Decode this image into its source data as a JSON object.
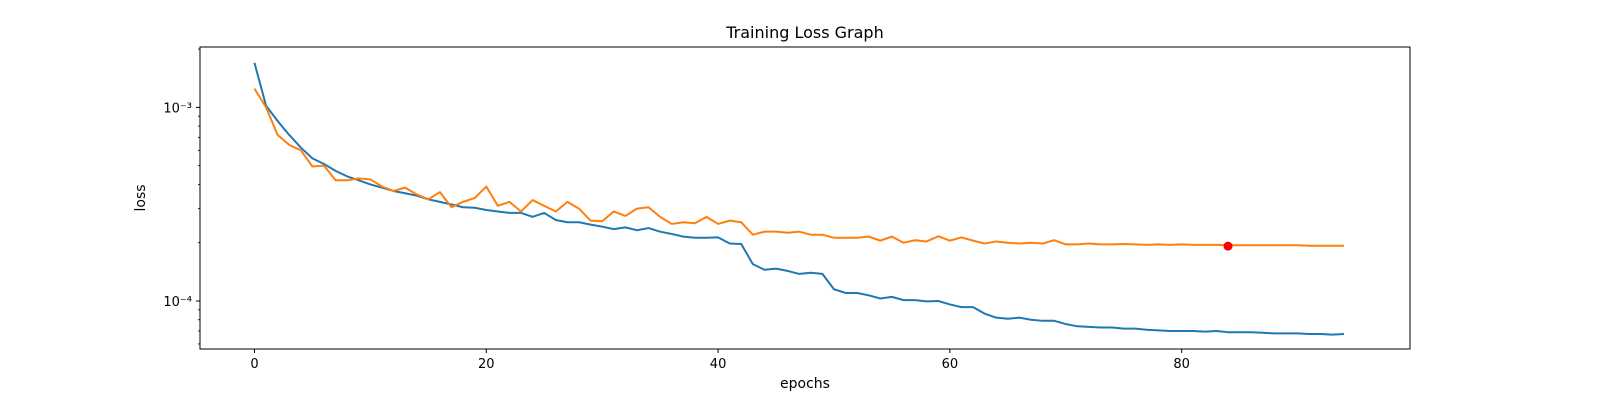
{
  "chart_data": {
    "type": "line",
    "title": "Training Loss Graph",
    "xlabel": "epochs",
    "ylabel": "loss",
    "yscale": "log",
    "xlim": [
      -4.7,
      99.7
    ],
    "ylim": [
      5.65e-05,
      0.00205
    ],
    "xticks": [
      0,
      20,
      40,
      60,
      80
    ],
    "xtick_labels": [
      "0",
      "20",
      "40",
      "60",
      "80"
    ],
    "yticks": [
      0.0001,
      0.001
    ],
    "ytick_labels": [
      "10⁻⁴",
      "10⁻³"
    ],
    "grid": false,
    "legend": "none",
    "series": [
      {
        "color": "#1f77b4",
        "x": [
          0,
          1,
          2,
          3,
          4,
          5,
          6,
          7,
          8,
          9,
          10,
          11,
          12,
          13,
          14,
          15,
          16,
          17,
          18,
          19,
          20,
          21,
          22,
          23,
          24,
          25,
          26,
          27,
          28,
          29,
          30,
          31,
          32,
          33,
          34,
          35,
          36,
          37,
          38,
          39,
          40,
          41,
          42,
          43,
          44,
          45,
          46,
          47,
          48,
          49,
          50,
          51,
          52,
          53,
          54,
          55,
          56,
          57,
          58,
          59,
          60,
          61,
          62,
          63,
          64,
          65,
          66,
          67,
          68,
          69,
          70,
          71,
          72,
          73,
          74,
          75,
          76,
          77,
          78,
          79,
          80,
          81,
          82,
          83,
          84,
          85,
          86,
          87,
          88,
          89,
          90,
          91,
          92,
          93,
          94
        ],
        "values": [
          0.0017,
          0.00102,
          0.00085,
          0.00072,
          0.00062,
          0.000545,
          0.00051,
          0.00047,
          0.00044,
          0.00042,
          0.0004,
          0.000385,
          0.00037,
          0.00036,
          0.00035,
          0.000335,
          0.000325,
          0.000315,
          0.000305,
          0.000303,
          0.000295,
          0.00029,
          0.000285,
          0.000285,
          0.000272,
          0.000285,
          0.000262,
          0.000255,
          0.000255,
          0.000248,
          0.000242,
          0.000235,
          0.00024,
          0.000232,
          0.000238,
          0.000228,
          0.000222,
          0.000215,
          0.000212,
          0.000212,
          0.000213,
          0.000198,
          0.000197,
          0.000155,
          0.000145,
          0.000147,
          0.000143,
          0.000138,
          0.00014,
          0.000138,
          0.000115,
          0.00011,
          0.00011,
          0.000107,
          0.000103,
          0.000105,
          0.000101,
          0.000101,
          9.95e-05,
          0.0001,
          9.6e-05,
          9.3e-05,
          9.3e-05,
          8.6e-05,
          8.2e-05,
          8.1e-05,
          8.2e-05,
          8e-05,
          7.9e-05,
          7.9e-05,
          7.6e-05,
          7.4e-05,
          7.35e-05,
          7.3e-05,
          7.3e-05,
          7.2e-05,
          7.2e-05,
          7.1e-05,
          7.05e-05,
          7e-05,
          7e-05,
          7e-05,
          6.95e-05,
          7e-05,
          6.9e-05,
          6.9e-05,
          6.9e-05,
          6.85e-05,
          6.8e-05,
          6.8e-05,
          6.8e-05,
          6.75e-05,
          6.75e-05,
          6.7e-05,
          6.75e-05
        ]
      },
      {
        "color": "#ff7f0e",
        "x": [
          0,
          1,
          2,
          3,
          4,
          5,
          6,
          7,
          8,
          9,
          10,
          11,
          12,
          13,
          14,
          15,
          16,
          17,
          18,
          19,
          20,
          21,
          22,
          23,
          24,
          25,
          26,
          27,
          28,
          29,
          30,
          31,
          32,
          33,
          34,
          35,
          36,
          37,
          38,
          39,
          40,
          41,
          42,
          43,
          44,
          45,
          46,
          47,
          48,
          49,
          50,
          51,
          52,
          53,
          54,
          55,
          56,
          57,
          58,
          59,
          60,
          61,
          62,
          63,
          64,
          65,
          66,
          67,
          68,
          69,
          70,
          71,
          72,
          73,
          74,
          75,
          76,
          77,
          78,
          79,
          80,
          81,
          82,
          83,
          84,
          85,
          86,
          87,
          88,
          89,
          90,
          91,
          92,
          93,
          94
        ],
        "values": [
          0.00125,
          0.001,
          0.00072,
          0.00064,
          0.0006,
          0.000495,
          0.0005,
          0.00042,
          0.00042,
          0.00043,
          0.000425,
          0.00039,
          0.00037,
          0.000385,
          0.000355,
          0.000335,
          0.000365,
          0.000305,
          0.000325,
          0.00034,
          0.00039,
          0.00031,
          0.000325,
          0.00029,
          0.000332,
          0.00031,
          0.00029,
          0.000325,
          0.0003,
          0.00026,
          0.000258,
          0.00029,
          0.000275,
          0.0003,
          0.000305,
          0.000272,
          0.00025,
          0.000255,
          0.000252,
          0.000272,
          0.00025,
          0.00026,
          0.000255,
          0.00022,
          0.000228,
          0.000228,
          0.000225,
          0.000228,
          0.00022,
          0.00022,
          0.000212,
          0.000212,
          0.000212,
          0.000215,
          0.000205,
          0.000215,
          0.0002,
          0.000206,
          0.000203,
          0.000216,
          0.000205,
          0.000213,
          0.000205,
          0.000198,
          0.000203,
          0.0002,
          0.000198,
          0.0002,
          0.000198,
          0.000206,
          0.000196,
          0.000196,
          0.000198,
          0.000196,
          0.000196,
          0.000197,
          0.000196,
          0.000195,
          0.000196,
          0.000195,
          0.000196,
          0.000195,
          0.000195,
          0.000195,
          0.000194,
          0.000194,
          0.000194,
          0.000194,
          0.000194,
          0.000194,
          0.000194,
          0.000193,
          0.000193,
          0.000193,
          0.000193
        ]
      }
    ],
    "marker": {
      "x": 84,
      "value": 0.000192,
      "color": "#ff0000"
    }
  }
}
